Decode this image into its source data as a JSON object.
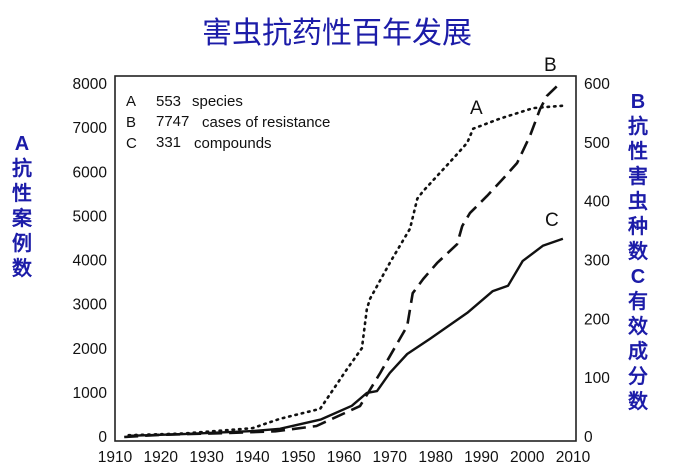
{
  "title": "害虫抗药性百年发展",
  "left_axis_label": "A抗性案例数",
  "right_axis_label": "B抗性害虫种数C有效成分数",
  "chart_data": {
    "type": "line",
    "title": "害虫抗药性百年发展",
    "xlim": [
      1910,
      2010
    ],
    "x_ticks": [
      "1910",
      "1920",
      "1930",
      "1940",
      "1950",
      "1960",
      "1970",
      "1980",
      "1990",
      "2000",
      "2010"
    ],
    "y_left": {
      "label": "A抗性案例数",
      "range": [
        0,
        8000
      ],
      "ticks": [
        "0",
        "1000",
        "2000",
        "3000",
        "4000",
        "5000",
        "6000",
        "7000",
        "8000"
      ]
    },
    "y_right": {
      "label": "B抗性害虫种数C有效成分数",
      "range": [
        0,
        600
      ],
      "ticks": [
        "0",
        "100",
        "200",
        "300",
        "400",
        "500",
        "600"
      ]
    },
    "grid": false,
    "legend": {
      "placement": "top-left",
      "entries": [
        {
          "key": "A",
          "value": "553",
          "text": "species"
        },
        {
          "key": "B",
          "value": "7747",
          "text": "cases of resistance"
        },
        {
          "key": "C",
          "value": "331",
          "text": "compounds"
        }
      ]
    },
    "series": [
      {
        "name": "A",
        "axis": "right",
        "style": "dotted",
        "x": [
          1913,
          1925,
          1940,
          1946,
          1954.8,
          1960.7,
          1963.9,
          1965,
          1965.7,
          1970,
          1974.4,
          1976,
          1977.3,
          1983.8,
          1986.9,
          1988.2,
          1994,
          2001.3,
          2007.6
        ],
        "y": [
          3,
          6,
          15,
          31,
          48,
          116,
          151,
          218,
          235,
          296,
          354,
          405,
          418,
          473,
          500,
          524,
          541,
          559,
          563
        ]
      },
      {
        "name": "B",
        "axis": "left",
        "style": "dashed",
        "x": [
          1912,
          1920,
          1935,
          1945,
          1954,
          1963.5,
          1967.9,
          1973.8,
          1975,
          1977.3,
          1980.3,
          1984.7,
          1985.8,
          1987.5,
          1991.2,
          1994.7,
          1997.8,
          2000.6,
          2002.8,
          2004.3,
          2006.5
        ],
        "y": [
          0,
          50,
          90,
          130,
          250,
          700,
          1450,
          2515,
          3260,
          3580,
          3940,
          4370,
          4780,
          5075,
          5460,
          5850,
          6210,
          6820,
          7430,
          7730,
          7950
        ]
      },
      {
        "name": "C",
        "axis": "right",
        "style": "solid",
        "x": [
          1913,
          1925,
          1940,
          1946,
          1955,
          1961.7,
          1965,
          1967.2,
          1970,
          1973.8,
          1978.8,
          1986.9,
          1992.5,
          1995.8,
          1999,
          2003.4,
          2007.8
        ],
        "y": [
          2,
          5,
          10,
          14,
          30,
          53,
          75,
          78,
          109,
          141,
          167,
          211,
          248,
          257,
          299,
          325,
          337
        ]
      }
    ]
  }
}
